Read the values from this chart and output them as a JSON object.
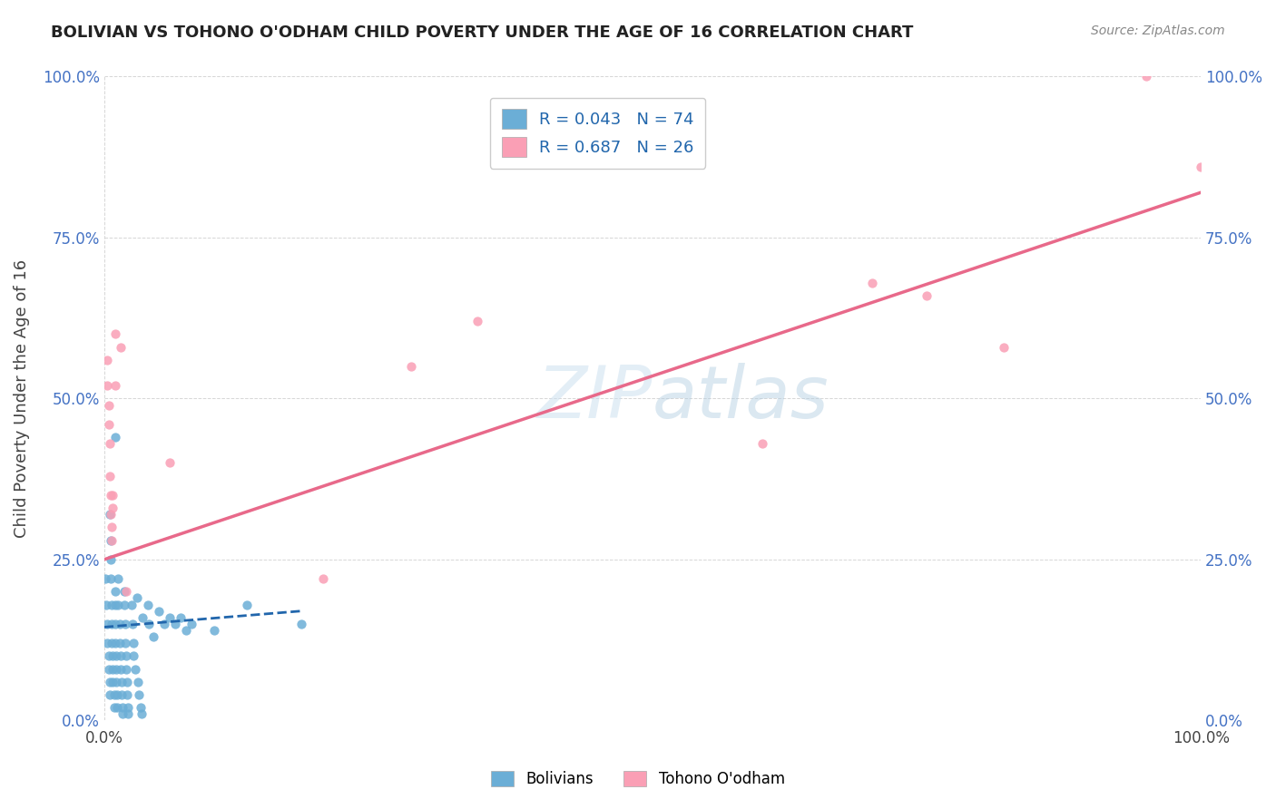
{
  "title": "BOLIVIAN VS TOHONO O'ODHAM CHILD POVERTY UNDER THE AGE OF 16 CORRELATION CHART",
  "source": "Source: ZipAtlas.com",
  "ylabel": "Child Poverty Under the Age of 16",
  "xlim": [
    0.0,
    1.0
  ],
  "ylim": [
    0.0,
    1.0
  ],
  "xtick_labels": [
    "0.0%",
    "100.0%"
  ],
  "ytick_labels": [
    "0.0%",
    "25.0%",
    "50.0%",
    "75.0%",
    "100.0%"
  ],
  "ytick_positions": [
    0.0,
    0.25,
    0.5,
    0.75,
    1.0
  ],
  "xtick_positions": [
    0.0,
    1.0
  ],
  "watermark_zip": "ZIP",
  "watermark_atlas": "atlas",
  "blue_color": "#6baed6",
  "pink_color": "#fa9fb5",
  "blue_line_color": "#2166ac",
  "pink_line_color": "#e8698a",
  "legend_line1": "R = 0.043   N = 74",
  "legend_line2": "R = 0.687   N = 26",
  "legend_bottom": [
    "Bolivians",
    "Tohono O'odham"
  ],
  "blue_scatter": [
    [
      0.001,
      0.22
    ],
    [
      0.002,
      0.18
    ],
    [
      0.003,
      0.15
    ],
    [
      0.003,
      0.12
    ],
    [
      0.004,
      0.1
    ],
    [
      0.004,
      0.08
    ],
    [
      0.005,
      0.32
    ],
    [
      0.005,
      0.06
    ],
    [
      0.005,
      0.04
    ],
    [
      0.006,
      0.28
    ],
    [
      0.006,
      0.25
    ],
    [
      0.006,
      0.22
    ],
    [
      0.007,
      0.18
    ],
    [
      0.007,
      0.15
    ],
    [
      0.007,
      0.12
    ],
    [
      0.008,
      0.1
    ],
    [
      0.008,
      0.08
    ],
    [
      0.008,
      0.06
    ],
    [
      0.009,
      0.04
    ],
    [
      0.009,
      0.02
    ],
    [
      0.01,
      0.44
    ],
    [
      0.01,
      0.2
    ],
    [
      0.01,
      0.18
    ],
    [
      0.01,
      0.15
    ],
    [
      0.01,
      0.12
    ],
    [
      0.011,
      0.1
    ],
    [
      0.011,
      0.08
    ],
    [
      0.011,
      0.06
    ],
    [
      0.012,
      0.04
    ],
    [
      0.012,
      0.02
    ],
    [
      0.013,
      0.22
    ],
    [
      0.013,
      0.18
    ],
    [
      0.014,
      0.15
    ],
    [
      0.014,
      0.12
    ],
    [
      0.015,
      0.1
    ],
    [
      0.015,
      0.08
    ],
    [
      0.016,
      0.06
    ],
    [
      0.016,
      0.04
    ],
    [
      0.017,
      0.02
    ],
    [
      0.017,
      0.01
    ],
    [
      0.018,
      0.2
    ],
    [
      0.018,
      0.18
    ],
    [
      0.019,
      0.15
    ],
    [
      0.019,
      0.12
    ],
    [
      0.02,
      0.1
    ],
    [
      0.02,
      0.08
    ],
    [
      0.021,
      0.06
    ],
    [
      0.021,
      0.04
    ],
    [
      0.022,
      0.02
    ],
    [
      0.022,
      0.01
    ],
    [
      0.025,
      0.18
    ],
    [
      0.026,
      0.15
    ],
    [
      0.027,
      0.12
    ],
    [
      0.027,
      0.1
    ],
    [
      0.028,
      0.08
    ],
    [
      0.03,
      0.19
    ],
    [
      0.031,
      0.06
    ],
    [
      0.032,
      0.04
    ],
    [
      0.033,
      0.02
    ],
    [
      0.034,
      0.01
    ],
    [
      0.035,
      0.16
    ],
    [
      0.04,
      0.18
    ],
    [
      0.041,
      0.15
    ],
    [
      0.045,
      0.13
    ],
    [
      0.05,
      0.17
    ],
    [
      0.055,
      0.15
    ],
    [
      0.06,
      0.16
    ],
    [
      0.065,
      0.15
    ],
    [
      0.07,
      0.16
    ],
    [
      0.075,
      0.14
    ],
    [
      0.08,
      0.15
    ],
    [
      0.1,
      0.14
    ],
    [
      0.13,
      0.18
    ],
    [
      0.18,
      0.15
    ]
  ],
  "pink_scatter": [
    [
      0.003,
      0.56
    ],
    [
      0.003,
      0.52
    ],
    [
      0.004,
      0.49
    ],
    [
      0.004,
      0.46
    ],
    [
      0.005,
      0.43
    ],
    [
      0.005,
      0.38
    ],
    [
      0.006,
      0.35
    ],
    [
      0.006,
      0.32
    ],
    [
      0.007,
      0.3
    ],
    [
      0.007,
      0.28
    ],
    [
      0.008,
      0.35
    ],
    [
      0.008,
      0.33
    ],
    [
      0.01,
      0.6
    ],
    [
      0.01,
      0.52
    ],
    [
      0.015,
      0.58
    ],
    [
      0.02,
      0.2
    ],
    [
      0.06,
      0.4
    ],
    [
      0.2,
      0.22
    ],
    [
      0.28,
      0.55
    ],
    [
      0.34,
      0.62
    ],
    [
      0.6,
      0.43
    ],
    [
      0.7,
      0.68
    ],
    [
      0.75,
      0.66
    ],
    [
      0.82,
      0.58
    ],
    [
      0.95,
      1.0
    ],
    [
      1.0,
      0.86
    ]
  ],
  "blue_trendline": [
    [
      0.0,
      0.145
    ],
    [
      0.18,
      0.17
    ]
  ],
  "pink_trendline": [
    [
      0.0,
      0.25
    ],
    [
      1.0,
      0.82
    ]
  ]
}
